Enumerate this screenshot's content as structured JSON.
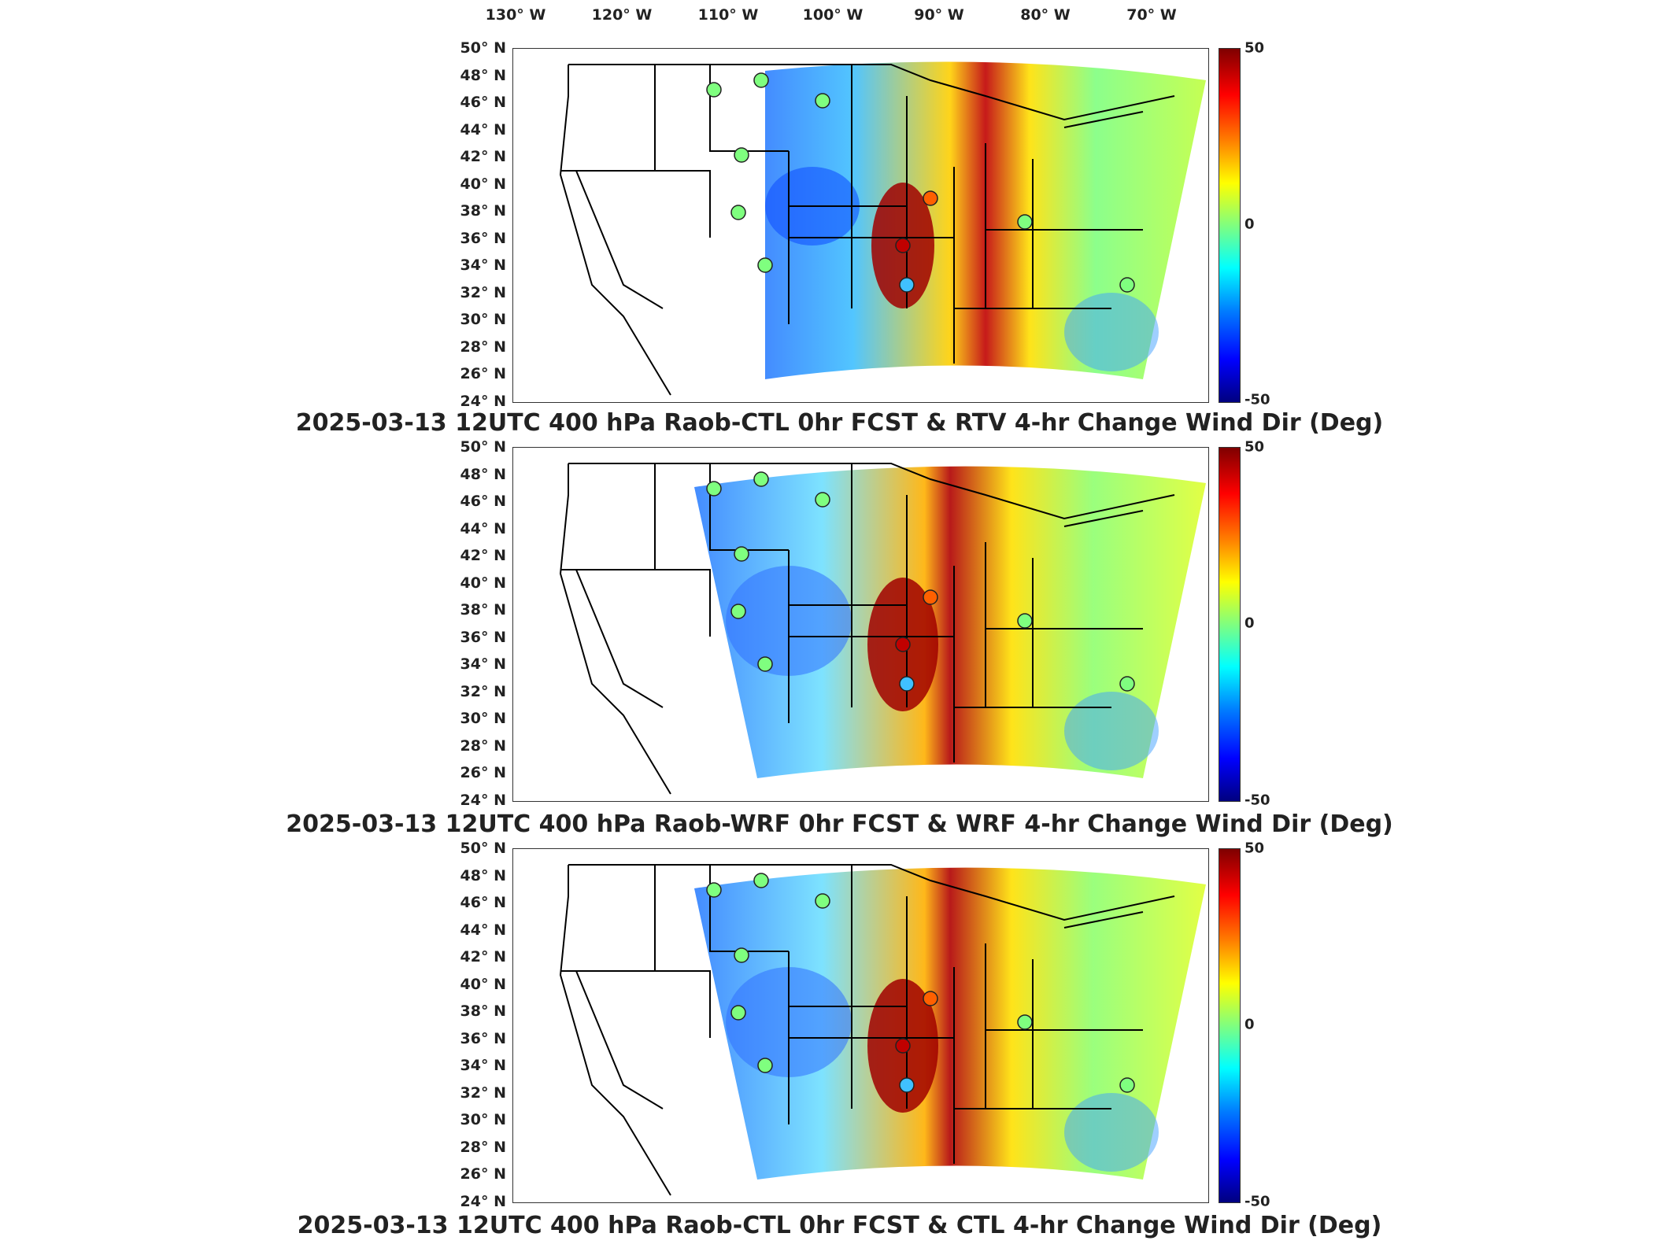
{
  "longitude_labels": [
    "130° W",
    "120° W",
    "110° W",
    "100° W",
    "90° W",
    "80° W",
    "70° W"
  ],
  "latitude_labels": [
    "50° N",
    "48° N",
    "46° N",
    "44° N",
    "42° N",
    "40° N",
    "38° N",
    "36° N",
    "34° N",
    "32° N",
    "30° N",
    "28° N",
    "26° N",
    "24° N"
  ],
  "colorbar": {
    "max": "50",
    "mid": "0",
    "min": "-50",
    "colors": [
      "#00007f",
      "#0000ff",
      "#007fff",
      "#00ffff",
      "#7fff7f",
      "#ffff00",
      "#ff7f00",
      "#ff0000",
      "#7f0000"
    ]
  },
  "panels": [
    {
      "title": "2025-03-13 12UTC 400 hPa Raob-CTL 0hr FCST & RTV 4-hr Change Wind Dir (Deg)"
    },
    {
      "title": "2025-03-13 12UTC 400 hPa Raob-WRF 0hr FCST & WRF 4-hr Change Wind Dir (Deg)"
    },
    {
      "title": "2025-03-13 12UTC 400 hPa Raob-CTL 0hr FCST & CTL 4-hr Change Wind Dir (Deg)"
    }
  ]
}
